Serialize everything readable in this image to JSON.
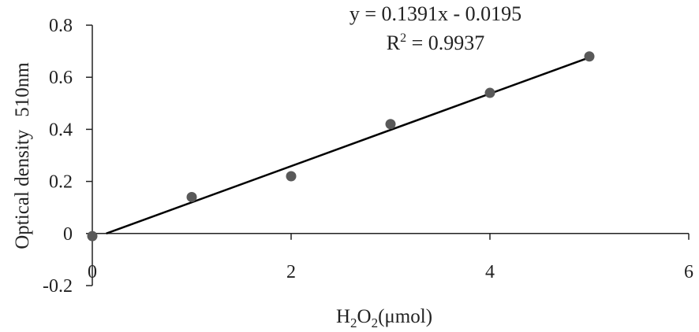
{
  "chart_data": {
    "type": "scatter",
    "title": "",
    "xlabel": "",
    "ylabel": "",
    "xlabel_parts": {
      "a": "H",
      "sub1": "2",
      "b": "O",
      "sub2": "2",
      "c": "(μmol)"
    },
    "ylabel_parts": {
      "a": "Optical density",
      "b": "510nm"
    },
    "xlim": [
      0,
      6
    ],
    "ylim": [
      -0.2,
      0.8
    ],
    "xticks": [
      0,
      2,
      4,
      6
    ],
    "yticks": [
      -0.2,
      0,
      0.2,
      0.4,
      0.6,
      0.8
    ],
    "xtick_labels": [
      "0",
      "2",
      "4",
      "6"
    ],
    "ytick_labels": [
      "-0.2",
      "0",
      "0.2",
      "0.4",
      "0.6",
      "0.8"
    ],
    "grid": false,
    "series": [
      {
        "x": [
          0,
          1,
          2,
          3,
          4,
          5
        ],
        "y": [
          -0.01,
          0.14,
          0.22,
          0.42,
          0.54,
          0.68
        ]
      }
    ],
    "trendline": {
      "slope": 0.1391,
      "intercept": -0.0195,
      "x_range": [
        0.14,
        5
      ]
    },
    "annotations": {
      "equation": "y = 0.1391x - 0.0195",
      "r2_prefix": "R",
      "r2_sup": "2",
      "r2_value": " = 0.9937"
    },
    "colors": {
      "points": "#595959",
      "line": "#000000",
      "axes": "#222222"
    }
  }
}
